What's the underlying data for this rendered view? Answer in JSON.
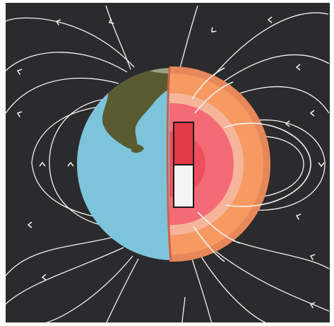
{
  "diagram": {
    "subject": "earth-magnetic-field",
    "colors": {
      "background": "#2b2b2d",
      "frame": "#ffffff",
      "ocean": "#7cc4dc",
      "land": "#5a5a30",
      "outer_mantle": "#f79a62",
      "mantle_rim": "#e8875a",
      "inner_layer": "#f6b59a",
      "outer_core": "#f56a77",
      "inner_core": "#ef4e5e",
      "magnet_north": "#e23a47",
      "magnet_south": "#f4f4f4",
      "field_line": "#f2f2f2"
    },
    "icons": [
      "bar-magnet-icon",
      "field-arrow-icon"
    ]
  }
}
